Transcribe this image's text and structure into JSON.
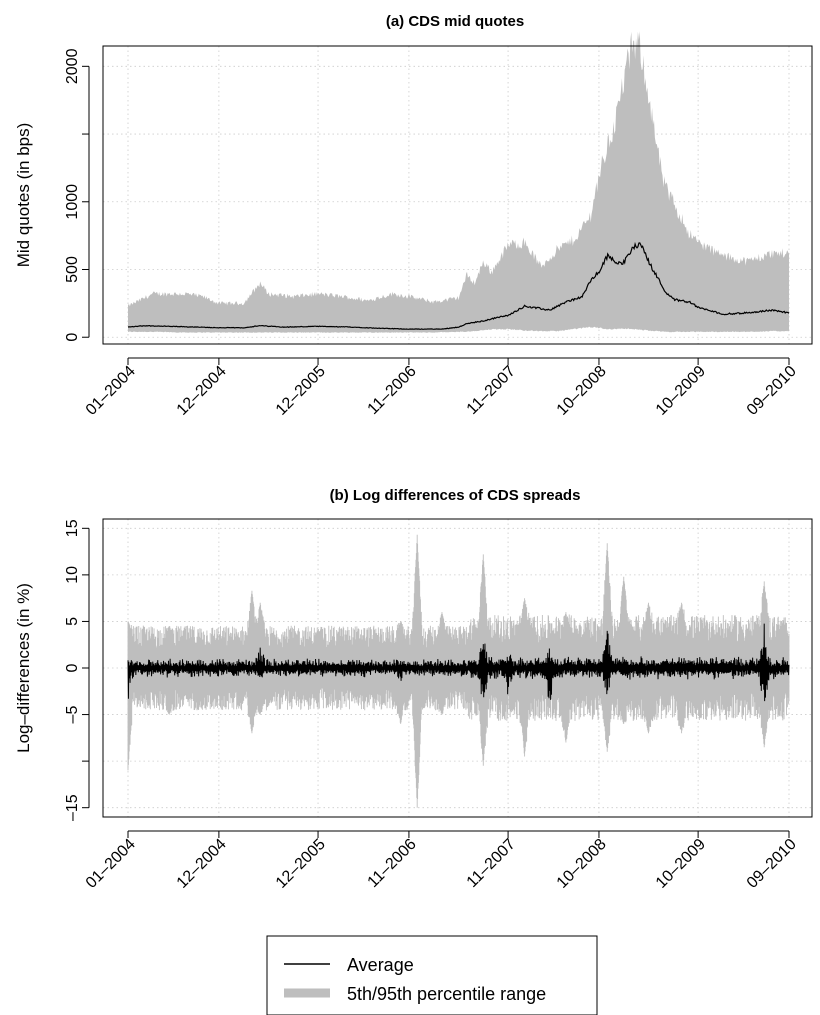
{
  "chart_data": [
    {
      "type": "area",
      "title": "(a) CDS mid quotes",
      "xlabel": "",
      "ylabel": "Mid quotes (in bps)",
      "x_ticks": [
        "01–2004",
        "12–2004",
        "12–2005",
        "11–2006",
        "11–2007",
        "10–2008",
        "10–2009",
        "09–2010"
      ],
      "xlim": [
        "01–2004",
        "09–2010"
      ],
      "y_ticks": [
        0,
        500,
        1000,
        1500,
        2000
      ],
      "y_tick_labels": [
        "0",
        "500",
        "1000",
        "",
        "2000"
      ],
      "ylim": [
        -50,
        2150
      ],
      "grid": true,
      "series": [
        {
          "name": "5th/95th percentile range",
          "type": "band",
          "color": "#bebebe",
          "x": [
            "01–2004",
            "04–2004",
            "08–2004",
            "10–2004",
            "12–2004",
            "03–2005",
            "05–2005",
            "06–2005",
            "09–2005",
            "12–2005",
            "03–2006",
            "06–2006",
            "09–2006",
            "11–2006",
            "02–2007",
            "05–2007",
            "06–2007",
            "07–2007",
            "08–2007",
            "09–2007",
            "11–2007",
            "01–2008",
            "03–2008",
            "05–2008",
            "07–2008",
            "09–2008",
            "10–2008",
            "11–2008",
            "12–2008",
            "01–2009",
            "02–2009",
            "03–2009",
            "04–2009",
            "05–2009",
            "06–2009",
            "07–2009",
            "09–2009",
            "10–2009",
            "01–2010",
            "04–2010",
            "07–2010",
            "09–2010"
          ],
          "lower": [
            40,
            40,
            35,
            35,
            35,
            35,
            35,
            35,
            35,
            35,
            35,
            35,
            35,
            35,
            35,
            40,
            40,
            45,
            50,
            60,
            60,
            50,
            45,
            45,
            60,
            75,
            70,
            60,
            60,
            65,
            60,
            55,
            50,
            45,
            40,
            40,
            40,
            40,
            40,
            40,
            45,
            45
          ],
          "upper": [
            230,
            320,
            320,
            300,
            250,
            250,
            400,
            320,
            300,
            320,
            300,
            270,
            320,
            300,
            260,
            290,
            460,
            400,
            560,
            480,
            680,
            700,
            520,
            650,
            720,
            900,
            1200,
            1400,
            1600,
            1900,
            2150,
            2140,
            1800,
            1400,
            1100,
            1000,
            760,
            700,
            600,
            560,
            620,
            620
          ]
        },
        {
          "name": "Average",
          "type": "line",
          "color": "#000000",
          "x": [
            "01–2004",
            "03–2004",
            "06–2004",
            "09–2004",
            "12–2004",
            "03–2005",
            "05–2005",
            "08–2005",
            "12–2005",
            "04–2006",
            "08–2006",
            "11–2006",
            "03–2007",
            "05–2007",
            "06–2007",
            "08–2007",
            "10–2007",
            "11–2007",
            "01–2008",
            "04–2008",
            "06–2008",
            "08–2008",
            "09–2008",
            "10–2008",
            "11–2008",
            "12–2008",
            "01–2009",
            "02–2009",
            "03–2009",
            "04–2009",
            "05–2009",
            "06–2009",
            "07–2009",
            "09–2009",
            "10–2009",
            "01–2010",
            "04–2010",
            "07–2010",
            "09–2010"
          ],
          "values": [
            75,
            85,
            80,
            75,
            70,
            70,
            85,
            75,
            80,
            75,
            65,
            60,
            60,
            75,
            100,
            120,
            150,
            160,
            230,
            200,
            260,
            300,
            420,
            480,
            600,
            560,
            550,
            650,
            700,
            560,
            450,
            340,
            280,
            260,
            220,
            170,
            180,
            200,
            180
          ]
        }
      ]
    },
    {
      "type": "area",
      "title": "(b) Log differences of CDS spreads",
      "xlabel": "",
      "ylabel": "Log–differences (in %)",
      "x_ticks": [
        "01–2004",
        "12–2004",
        "12–2005",
        "11–2006",
        "11–2007",
        "10–2008",
        "10–2009",
        "09–2010"
      ],
      "xlim": [
        "01–2004",
        "09–2010"
      ],
      "y_ticks": [
        -15,
        -10,
        -5,
        0,
        5,
        10,
        15
      ],
      "y_tick_labels": [
        "–15",
        "",
        "–5",
        "0",
        "5",
        "10",
        "15"
      ],
      "ylim": [
        -16,
        16
      ],
      "grid": true,
      "series": [
        {
          "name": "5th/95th percentile range",
          "type": "band",
          "color": "#bebebe",
          "typical_range": [
            -3.5,
            3.5
          ],
          "spikes": [
            {
              "x": "01–2004",
              "low": -11,
              "high": 5
            },
            {
              "x": "06–2004",
              "low": -5,
              "high": 4.5
            },
            {
              "x": "04–2005",
              "low": -7,
              "high": 8.3
            },
            {
              "x": "05–2005",
              "low": -5,
              "high": 7
            },
            {
              "x": "10–2006",
              "low": -6,
              "high": 5
            },
            {
              "x": "12–2006",
              "low": -15,
              "high": 14.3
            },
            {
              "x": "03–2007",
              "low": -5,
              "high": 6
            },
            {
              "x": "08–2007",
              "low": -10.5,
              "high": 12.2
            },
            {
              "x": "01–2008",
              "low": -9.5,
              "high": 7.5
            },
            {
              "x": "06–2008",
              "low": -8,
              "high": 6
            },
            {
              "x": "11–2008",
              "low": -9,
              "high": 13.4
            },
            {
              "x": "01–2009",
              "low": -6,
              "high": 9.8
            },
            {
              "x": "04–2009",
              "low": -7,
              "high": 7
            },
            {
              "x": "08–2009",
              "low": -7,
              "high": 7
            },
            {
              "x": "06–2010",
              "low": -8.5,
              "high": 9.3
            },
            {
              "x": "09–2010",
              "low": -2.5,
              "high": 3.5
            }
          ]
        },
        {
          "name": "Average",
          "type": "line",
          "color": "#000000",
          "typical_range": [
            -0.8,
            0.8
          ],
          "spikes": [
            {
              "x": "01–2004",
              "low": -4,
              "high": 1
            },
            {
              "x": "05–2005",
              "low": -1.5,
              "high": 2.3
            },
            {
              "x": "10–2006",
              "low": -1.5,
              "high": 1.2
            },
            {
              "x": "08–2007",
              "low": -5,
              "high": 5
            },
            {
              "x": "11–2007",
              "low": -3.5,
              "high": 2
            },
            {
              "x": "04–2008",
              "low": -4.5,
              "high": 2.5
            },
            {
              "x": "11–2008",
              "low": -3.5,
              "high": 4.5
            },
            {
              "x": "06–2010",
              "low": -5,
              "high": 5.5
            }
          ]
        }
      ]
    }
  ],
  "legend": {
    "placement": "bottom-center",
    "items": [
      {
        "label": "Average",
        "color": "#000000",
        "style": "thin-line"
      },
      {
        "label": "5th/95th percentile range",
        "color": "#bebebe",
        "style": "thick-line"
      }
    ]
  }
}
